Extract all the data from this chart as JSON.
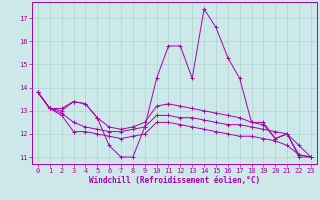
{
  "xlabel": "Windchill (Refroidissement éolien,°C)",
  "xlim": [
    -0.5,
    23.5
  ],
  "ylim": [
    10.7,
    17.7
  ],
  "yticks": [
    11,
    12,
    13,
    14,
    15,
    16,
    17
  ],
  "xticks": [
    0,
    1,
    2,
    3,
    4,
    5,
    6,
    7,
    8,
    9,
    10,
    11,
    12,
    13,
    14,
    15,
    16,
    17,
    18,
    19,
    20,
    21,
    22,
    23
  ],
  "bg_color": "#cce8e8",
  "grid_color": "#aad4d4",
  "line_color": "#aa00aa",
  "line1_y": [
    13.8,
    13.1,
    13.1,
    13.4,
    13.3,
    12.7,
    11.5,
    11.0,
    11.0,
    12.3,
    14.4,
    15.8,
    15.8,
    14.4,
    17.4,
    16.6,
    15.3,
    14.4,
    12.5,
    12.5,
    11.8,
    12.0,
    11.0,
    11.0
  ],
  "line2_y": [
    13.8,
    13.1,
    12.8,
    12.1,
    12.1,
    12.0,
    11.9,
    11.8,
    11.9,
    12.0,
    12.5,
    12.5,
    12.4,
    12.3,
    12.2,
    12.1,
    12.0,
    11.9,
    11.9,
    11.8,
    11.7,
    11.5,
    11.1,
    11.0
  ],
  "line3_y": [
    13.8,
    13.1,
    13.0,
    13.4,
    13.3,
    12.7,
    12.3,
    12.2,
    12.3,
    12.5,
    13.2,
    13.3,
    13.2,
    13.1,
    13.0,
    12.9,
    12.8,
    12.7,
    12.5,
    12.4,
    11.8,
    12.0,
    11.1,
    11.0
  ],
  "line4_y": [
    13.8,
    13.1,
    12.9,
    12.5,
    12.3,
    12.2,
    12.1,
    12.1,
    12.2,
    12.3,
    12.8,
    12.8,
    12.7,
    12.7,
    12.6,
    12.5,
    12.4,
    12.4,
    12.3,
    12.2,
    12.1,
    12.0,
    11.5,
    11.0
  ]
}
